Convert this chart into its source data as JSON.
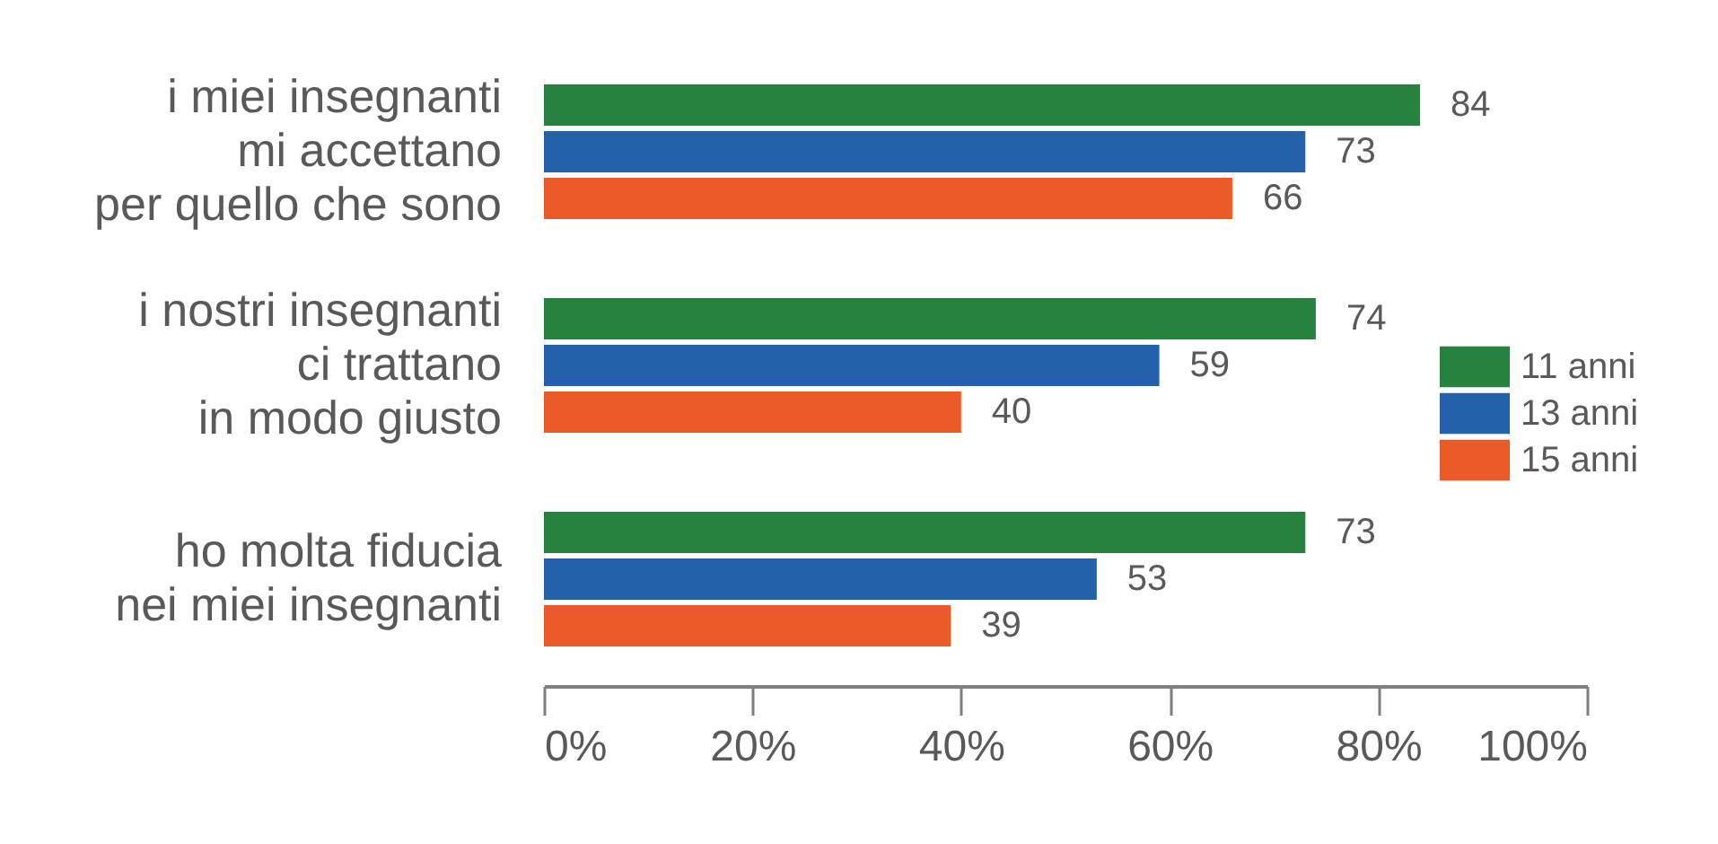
{
  "chart_data": {
    "type": "bar",
    "orientation": "horizontal",
    "categories": [
      "i miei insegnanti\nmi accettano\nper quello che sono",
      "i nostri insegnanti\nci trattano\nin modo giusto",
      "ho molta fiducia\nnei miei insegnanti"
    ],
    "series": [
      {
        "name": "11 anni",
        "color": "#27813f",
        "values": [
          84,
          74,
          73
        ]
      },
      {
        "name": "13 anni",
        "color": "#2361aa",
        "values": [
          73,
          59,
          53
        ]
      },
      {
        "name": "15 anni",
        "color": "#eb5b27",
        "values": [
          66,
          40,
          39
        ]
      }
    ],
    "xlim": [
      0,
      100
    ],
    "xticks": [
      {
        "value": 0,
        "label": "0%"
      },
      {
        "value": 20,
        "label": "20%"
      },
      {
        "value": 40,
        "label": "40%"
      },
      {
        "value": 60,
        "label": "60%"
      },
      {
        "value": 80,
        "label": "80%"
      },
      {
        "value": 100,
        "label": "100%"
      }
    ],
    "data_labels": true,
    "legend": "right"
  }
}
